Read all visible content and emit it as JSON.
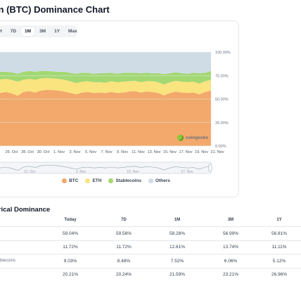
{
  "page_title": "oin (BTC) Dominance Chart",
  "tabs": [
    {
      "label": "H",
      "active": false
    },
    {
      "label": "7D",
      "active": false
    },
    {
      "label": "1M",
      "active": true
    },
    {
      "label": "3M",
      "active": false
    },
    {
      "label": "1Y",
      "active": false
    },
    {
      "label": "Max",
      "active": false
    }
  ],
  "watermark": "coingecko",
  "legend": [
    {
      "label": "BTC",
      "color": "#f2a96b"
    },
    {
      "label": "ETH",
      "color": "#fae47f"
    },
    {
      "label": "Stablecoins",
      "color": "#a3d872"
    },
    {
      "label": "Others",
      "color": "#cfdce6"
    }
  ],
  "chart_data": {
    "type": "area",
    "stacked": true,
    "percent": true,
    "x_tick_labels": [
      "Oct",
      "26. Oct",
      "28. Oct",
      "30. Oct",
      "1. Nov",
      "3. Nov",
      "5. Nov",
      "7. Nov",
      "9. Nov",
      "11. Nov",
      "13. Nov",
      "15. Nov",
      "17. Nov",
      "19. Nov",
      "21. Nov"
    ],
    "y_tick_labels": [
      "100.00%",
      "75.00%",
      "50.00%",
      "25.00%",
      "0.00%"
    ],
    "ylim": [
      0,
      100
    ],
    "navigator_labels": [
      "31. Oct",
      "3. Nov",
      "10. Nov",
      "17. Nov"
    ],
    "series": [
      {
        "name": "BTC",
        "color": "#f2a96b",
        "values": [
          56.5,
          57.5,
          56.0,
          53.5,
          57.5,
          58.5,
          57.0,
          59.0,
          60.0,
          59.5,
          59.0,
          58.0,
          56.5,
          55.0,
          57.0,
          57.5,
          56.5,
          57.0,
          56.5,
          57.5,
          56.5,
          57.0,
          58.0,
          58.5,
          57.0,
          58.0,
          57.5,
          56.5,
          54.0,
          56.5,
          58.0,
          57.0,
          56.5,
          57.0,
          55.0,
          57.5,
          59.0
        ]
      },
      {
        "name": "ETH",
        "color": "#fae47f",
        "values": [
          14.5,
          14.0,
          14.5,
          15.0,
          13.0,
          13.0,
          13.5,
          13.0,
          12.5,
          12.5,
          12.5,
          12.5,
          12.5,
          12.0,
          11.5,
          11.5,
          11.5,
          11.0,
          11.0,
          11.5,
          11.5,
          11.5,
          11.0,
          11.0,
          11.0,
          11.0,
          11.5,
          11.5,
          11.5,
          11.5,
          11.5,
          11.5,
          11.5,
          11.5,
          11.5,
          11.5,
          11.5
        ]
      },
      {
        "name": "Stablecoins",
        "color": "#a3d872",
        "values": [
          8.0,
          7.5,
          8.0,
          8.5,
          8.5,
          8.5,
          8.5,
          8.0,
          7.5,
          7.5,
          7.5,
          8.5,
          9.0,
          10.0,
          9.5,
          9.0,
          9.0,
          9.5,
          10.0,
          9.0,
          9.0,
          9.5,
          9.0,
          8.5,
          9.5,
          9.0,
          8.5,
          9.5,
          11.0,
          9.5,
          9.0,
          9.0,
          9.0,
          9.5,
          11.0,
          9.0,
          9.5
        ]
      },
      {
        "name": "Others",
        "color": "#cfdce6",
        "values": [
          21.0,
          21.0,
          21.5,
          23.0,
          21.0,
          20.0,
          21.0,
          20.0,
          20.0,
          20.5,
          21.0,
          21.0,
          22.0,
          23.0,
          22.0,
          22.0,
          23.0,
          22.5,
          22.5,
          22.0,
          23.0,
          22.0,
          22.0,
          22.0,
          22.5,
          22.0,
          22.5,
          22.5,
          23.5,
          22.5,
          21.5,
          22.5,
          23.0,
          22.0,
          22.5,
          22.0,
          20.0
        ]
      }
    ]
  },
  "table": {
    "title": "orical Dominance",
    "headers": [
      "",
      "Today",
      "7D",
      "1M",
      "3M",
      "1Y"
    ],
    "rows": [
      {
        "label": "",
        "values": [
          "59.04%",
          "59.56%",
          "58.28%",
          "56.99%",
          "56.81%"
        ]
      },
      {
        "label": "",
        "values": [
          "11.72%",
          "11.72%",
          "12.61%",
          "13.74%",
          "11.11%"
        ]
      },
      {
        "label": "blecoins",
        "values": [
          "9.03%",
          "8.48%",
          "7.52%",
          "6.06%",
          "5.12%"
        ]
      },
      {
        "label": "",
        "values": [
          "20.21%",
          "20.24%",
          "21.59%",
          "23.21%",
          "26.96%"
        ]
      }
    ]
  }
}
